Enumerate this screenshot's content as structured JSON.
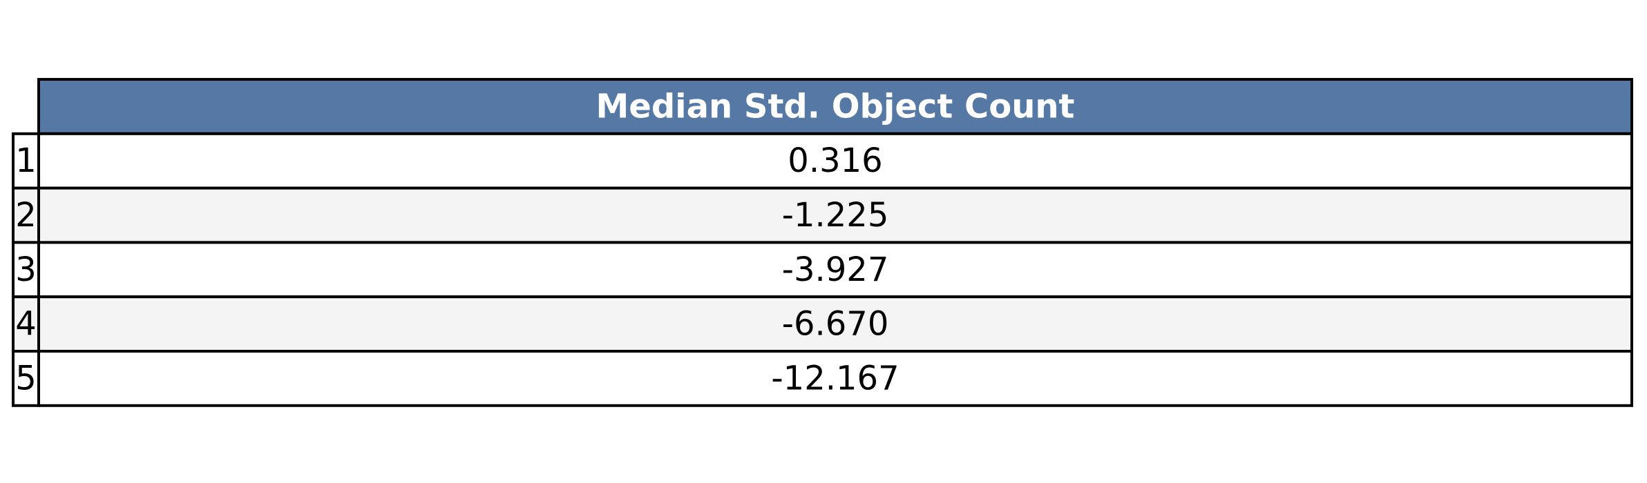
{
  "chart_data": {
    "type": "table",
    "columns": [
      "Median Std. Object Count"
    ],
    "row_labels": [
      "1",
      "2",
      "3",
      "4",
      "5"
    ],
    "rows": [
      [
        "0.316"
      ],
      [
        "-1.225"
      ],
      [
        "-3.927"
      ],
      [
        "-6.670"
      ],
      [
        "-12.167"
      ]
    ]
  },
  "colors": {
    "header_fill": "#5578a5",
    "header_text": "#ffffff",
    "row_even": "#ffffff",
    "row_odd": "#f4f4f4",
    "border": "#000000"
  }
}
